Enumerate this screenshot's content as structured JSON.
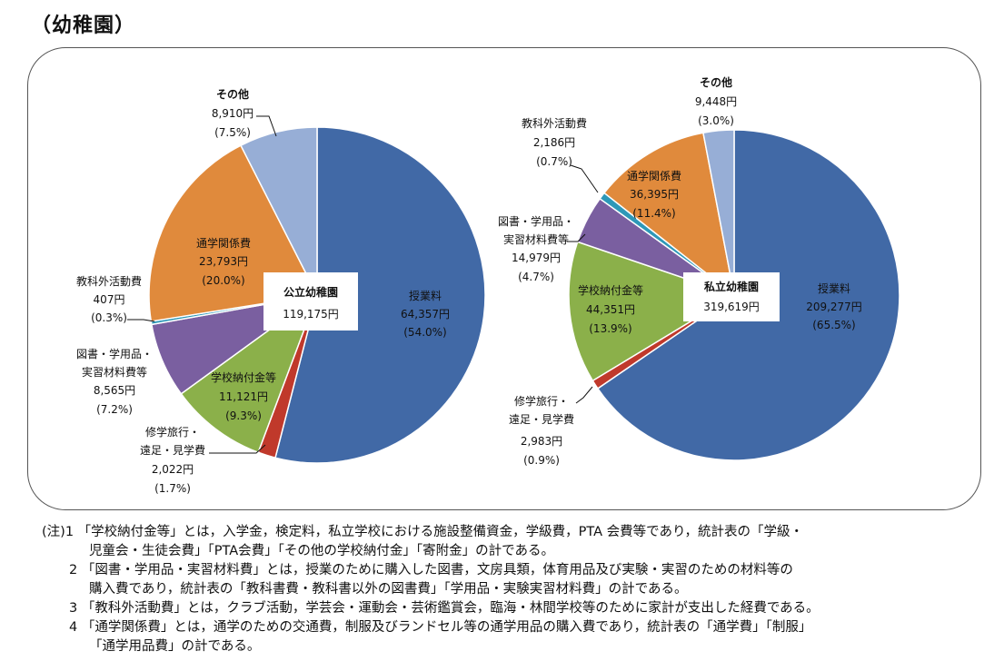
{
  "heading": "（幼稚園）",
  "chart_data": [
    {
      "type": "pie",
      "title": "公立幼稚園",
      "total": "119,175円",
      "slices": [
        {
          "label": "授業料",
          "amount": "64,357円",
          "pct": "(54.0%)",
          "value": 54.0,
          "color": "#4169a6"
        },
        {
          "label": "修学旅行・遠足・見学費",
          "amount": "2,022円",
          "pct": "(1.7%)",
          "value": 1.7,
          "color": "#c0392b"
        },
        {
          "label": "学校納付金等",
          "amount": "11,121円",
          "pct": "(9.3%)",
          "value": 9.3,
          "color": "#8bb04a"
        },
        {
          "label": "図書・学用品・実習材料費等",
          "amount": "8,565円",
          "pct": "(7.2%)",
          "value": 7.2,
          "color": "#7a5fa0"
        },
        {
          "label": "教科外活動費",
          "amount": "407円",
          "pct": "(0.3%)",
          "value": 0.3,
          "color": "#2e98b8"
        },
        {
          "label": "通学関係費",
          "amount": "23,793円",
          "pct": "(20.0%)",
          "value": 20.0,
          "color": "#e08a3c"
        },
        {
          "label": "その他",
          "amount": "8,910円",
          "pct": "(7.5%)",
          "value": 7.5,
          "color": "#97aed6"
        }
      ]
    },
    {
      "type": "pie",
      "title": "私立幼稚園",
      "total": "319,619円",
      "slices": [
        {
          "label": "授業料",
          "amount": "209,277円",
          "pct": "(65.5%)",
          "value": 65.5,
          "color": "#4169a6"
        },
        {
          "label": "修学旅行・遠足・見学費",
          "amount": "2,983円",
          "pct": "(0.9%)",
          "value": 0.9,
          "color": "#c0392b"
        },
        {
          "label": "学校納付金等",
          "amount": "44,351円",
          "pct": "(13.9%)",
          "value": 13.9,
          "color": "#8bb04a"
        },
        {
          "label": "図書・学用品・実習材料費等",
          "amount": "14,979円",
          "pct": "(4.7%)",
          "value": 4.7,
          "color": "#7a5fa0"
        },
        {
          "label": "教科外活動費",
          "amount": "2,186円",
          "pct": "(0.7%)",
          "value": 0.7,
          "color": "#2e98b8"
        },
        {
          "label": "通学関係費",
          "amount": "36,395円",
          "pct": "(11.4%)",
          "value": 11.4,
          "color": "#e08a3c"
        },
        {
          "label": "その他",
          "amount": "9,448円",
          "pct": "(3.0%)",
          "value": 3.0,
          "color": "#97aed6"
        }
      ]
    }
  ],
  "notes": {
    "n1a": "(注)1 「学校納付金等」とは，入学金，検定料，私立学校における施設整備資金，学級費，PTA 会費等であり，統計表の「学級・",
    "n1b": "児童会・生徒会費」「PTA会費」「その他の学校納付金」「寄附金」の計である。",
    "n2a": "2 「図書・学用品・実習材料費」とは，授業のために購入した図書，文房具類，体育用品及び実験・実習のための材料等の",
    "n2b": "購入費であり，統計表の「教科書費・教科書以外の図書費」「学用品・実験実習材料費」の計である。",
    "n3": "3 「教科外活動費」とは，クラブ活動，学芸会・運動会・芸術鑑賞会，臨海・林間学校等のために家計が支出した経費である。",
    "n4a": "4 「通学関係費」とは，通学のための交通費，制服及びランドセル等の通学用品の購入費であり，統計表の「通学費」「制服」",
    "n4b": "「通学用品費」の計である。"
  }
}
